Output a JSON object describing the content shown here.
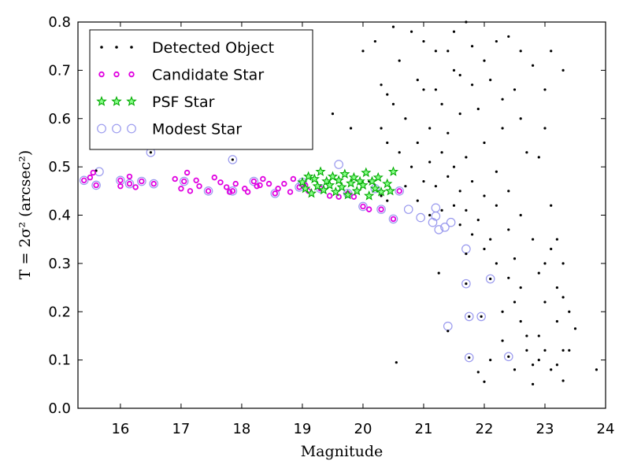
{
  "chart_data": {
    "type": "scatter",
    "xlabel": "Magnitude",
    "ylabel": "T = 2σ² (arcsec²)",
    "xlim": [
      15.3,
      24.0
    ],
    "ylim": [
      0.0,
      0.8
    ],
    "xticks": [
      "16",
      "17",
      "18",
      "19",
      "20",
      "21",
      "22",
      "23",
      "24"
    ],
    "yticks": [
      "0.0",
      "0.1",
      "0.2",
      "0.3",
      "0.4",
      "0.5",
      "0.6",
      "0.7",
      "0.8"
    ],
    "grid": false,
    "legend_position": "top-left",
    "series": [
      {
        "name": "Detected Object",
        "marker": "dot",
        "color": "#000000",
        "points": [
          [
            15.6,
            0.492
          ],
          [
            16.5,
            0.53
          ],
          [
            17.85,
            0.515
          ],
          [
            20.55,
            0.095
          ],
          [
            21.25,
            0.28
          ],
          [
            21.4,
            0.16
          ],
          [
            21.7,
            0.32
          ],
          [
            21.7,
            0.258
          ],
          [
            21.75,
            0.19
          ],
          [
            21.75,
            0.105
          ],
          [
            22.1,
            0.268
          ],
          [
            22.4,
            0.107
          ],
          [
            21.95,
            0.19
          ],
          [
            23.85,
            0.08
          ],
          [
            23.3,
            0.057
          ],
          [
            19.8,
            0.58
          ],
          [
            20.0,
            0.74
          ],
          [
            20.2,
            0.76
          ],
          [
            20.4,
            0.55
          ],
          [
            20.3,
            0.67
          ],
          [
            19.5,
            0.61
          ],
          [
            20.6,
            0.72
          ],
          [
            20.5,
            0.79
          ],
          [
            20.9,
            0.68
          ],
          [
            21.0,
            0.66
          ],
          [
            21.1,
            0.58
          ],
          [
            21.2,
            0.74
          ],
          [
            21.3,
            0.63
          ],
          [
            21.4,
            0.57
          ],
          [
            21.5,
            0.7
          ],
          [
            21.6,
            0.61
          ],
          [
            21.7,
            0.52
          ],
          [
            21.8,
            0.75
          ],
          [
            21.9,
            0.62
          ],
          [
            22.0,
            0.55
          ],
          [
            22.1,
            0.68
          ],
          [
            22.2,
            0.49
          ],
          [
            22.3,
            0.58
          ],
          [
            22.4,
            0.45
          ],
          [
            22.5,
            0.66
          ],
          [
            22.6,
            0.4
          ],
          [
            22.7,
            0.53
          ],
          [
            22.8,
            0.35
          ],
          [
            22.9,
            0.28
          ],
          [
            23.0,
            0.22
          ],
          [
            23.1,
            0.42
          ],
          [
            23.2,
            0.18
          ],
          [
            23.3,
            0.12
          ],
          [
            23.4,
            0.2
          ],
          [
            23.5,
            0.165
          ],
          [
            23.2,
            0.35
          ],
          [
            23.3,
            0.23
          ],
          [
            23.0,
            0.3
          ],
          [
            22.9,
            0.15
          ],
          [
            22.8,
            0.09
          ],
          [
            22.7,
            0.12
          ],
          [
            22.6,
            0.25
          ],
          [
            22.5,
            0.31
          ],
          [
            22.4,
            0.37
          ],
          [
            22.3,
            0.2
          ],
          [
            22.2,
            0.42
          ],
          [
            22.1,
            0.35
          ],
          [
            22.0,
            0.44
          ],
          [
            21.9,
            0.39
          ],
          [
            21.8,
            0.47
          ],
          [
            21.7,
            0.41
          ],
          [
            21.6,
            0.45
          ],
          [
            21.5,
            0.5
          ],
          [
            21.4,
            0.48
          ],
          [
            21.3,
            0.53
          ],
          [
            21.2,
            0.46
          ],
          [
            21.1,
            0.51
          ],
          [
            21.0,
            0.47
          ],
          [
            20.9,
            0.55
          ],
          [
            20.8,
            0.5
          ],
          [
            20.7,
            0.6
          ],
          [
            20.6,
            0.53
          ],
          [
            20.5,
            0.63
          ],
          [
            20.4,
            0.65
          ],
          [
            20.3,
            0.58
          ],
          [
            21.5,
            0.78
          ],
          [
            21.7,
            0.8
          ],
          [
            22.2,
            0.76
          ],
          [
            22.4,
            0.77
          ],
          [
            22.6,
            0.74
          ],
          [
            22.8,
            0.71
          ],
          [
            23.0,
            0.66
          ],
          [
            23.1,
            0.74
          ],
          [
            23.3,
            0.7
          ],
          [
            23.0,
            0.58
          ],
          [
            22.9,
            0.52
          ],
          [
            22.6,
            0.6
          ],
          [
            22.3,
            0.64
          ],
          [
            22.0,
            0.72
          ],
          [
            21.8,
            0.67
          ],
          [
            21.6,
            0.69
          ],
          [
            21.4,
            0.74
          ],
          [
            21.2,
            0.66
          ],
          [
            21.0,
            0.76
          ],
          [
            20.8,
            0.78
          ],
          [
            20.1,
            0.47
          ],
          [
            20.3,
            0.44
          ],
          [
            20.4,
            0.43
          ],
          [
            20.7,
            0.46
          ],
          [
            20.9,
            0.43
          ],
          [
            21.1,
            0.4
          ],
          [
            21.3,
            0.41
          ],
          [
            21.5,
            0.42
          ],
          [
            21.6,
            0.38
          ],
          [
            21.8,
            0.36
          ],
          [
            22.0,
            0.33
          ],
          [
            22.2,
            0.3
          ],
          [
            22.4,
            0.27
          ],
          [
            22.5,
            0.22
          ],
          [
            22.6,
            0.18
          ],
          [
            22.7,
            0.15
          ],
          [
            22.9,
            0.1
          ],
          [
            23.0,
            0.12
          ],
          [
            23.1,
            0.08
          ],
          [
            22.8,
            0.05
          ],
          [
            22.0,
            0.055
          ],
          [
            22.1,
            0.1
          ],
          [
            21.9,
            0.075
          ],
          [
            22.3,
            0.14
          ],
          [
            22.5,
            0.08
          ],
          [
            23.2,
            0.09
          ],
          [
            23.4,
            0.12
          ],
          [
            23.3,
            0.3
          ],
          [
            23.2,
            0.25
          ],
          [
            23.1,
            0.33
          ]
        ]
      },
      {
        "name": "Candidate Star",
        "marker": "small-circle",
        "color": "#e000e0",
        "points": [
          [
            15.4,
            0.472
          ],
          [
            15.5,
            0.478
          ],
          [
            15.6,
            0.462
          ],
          [
            15.55,
            0.488
          ],
          [
            16.0,
            0.472
          ],
          [
            16.0,
            0.46
          ],
          [
            16.15,
            0.48
          ],
          [
            16.15,
            0.465
          ],
          [
            16.25,
            0.458
          ],
          [
            16.35,
            0.47
          ],
          [
            16.55,
            0.465
          ],
          [
            16.9,
            0.475
          ],
          [
            17.0,
            0.455
          ],
          [
            17.05,
            0.47
          ],
          [
            17.1,
            0.488
          ],
          [
            17.15,
            0.45
          ],
          [
            17.25,
            0.472
          ],
          [
            17.3,
            0.46
          ],
          [
            17.45,
            0.45
          ],
          [
            17.55,
            0.478
          ],
          [
            17.65,
            0.468
          ],
          [
            17.75,
            0.458
          ],
          [
            17.85,
            0.45
          ],
          [
            17.9,
            0.465
          ],
          [
            18.05,
            0.455
          ],
          [
            18.1,
            0.448
          ],
          [
            18.2,
            0.47
          ],
          [
            18.3,
            0.462
          ],
          [
            18.35,
            0.475
          ],
          [
            18.45,
            0.465
          ],
          [
            18.55,
            0.445
          ],
          [
            18.6,
            0.455
          ],
          [
            18.7,
            0.465
          ],
          [
            18.8,
            0.448
          ],
          [
            18.85,
            0.475
          ],
          [
            18.95,
            0.458
          ],
          [
            19.05,
            0.462
          ],
          [
            19.1,
            0.45
          ],
          [
            19.3,
            0.455
          ],
          [
            19.45,
            0.44
          ],
          [
            19.6,
            0.438
          ],
          [
            19.75,
            0.445
          ],
          [
            19.85,
            0.438
          ],
          [
            20.0,
            0.418
          ],
          [
            20.1,
            0.412
          ],
          [
            20.3,
            0.412
          ],
          [
            20.5,
            0.392
          ],
          [
            20.6,
            0.45
          ],
          [
            17.8,
            0.448
          ],
          [
            18.25,
            0.46
          ]
        ]
      },
      {
        "name": "PSF Star",
        "marker": "star",
        "color": "#00aa00",
        "points": [
          [
            19.0,
            0.468
          ],
          [
            19.05,
            0.455
          ],
          [
            19.1,
            0.48
          ],
          [
            19.15,
            0.445
          ],
          [
            19.2,
            0.475
          ],
          [
            19.25,
            0.46
          ],
          [
            19.3,
            0.49
          ],
          [
            19.35,
            0.452
          ],
          [
            19.4,
            0.47
          ],
          [
            19.45,
            0.462
          ],
          [
            19.5,
            0.48
          ],
          [
            19.55,
            0.448
          ],
          [
            19.6,
            0.472
          ],
          [
            19.65,
            0.458
          ],
          [
            19.7,
            0.485
          ],
          [
            19.75,
            0.442
          ],
          [
            19.8,
            0.466
          ],
          [
            19.85,
            0.478
          ],
          [
            19.9,
            0.45
          ],
          [
            19.95,
            0.47
          ],
          [
            20.0,
            0.462
          ],
          [
            20.05,
            0.488
          ],
          [
            20.1,
            0.44
          ],
          [
            20.15,
            0.47
          ],
          [
            20.2,
            0.455
          ],
          [
            20.25,
            0.478
          ],
          [
            20.3,
            0.448
          ],
          [
            20.4,
            0.465
          ],
          [
            20.45,
            0.45
          ],
          [
            20.5,
            0.49
          ]
        ]
      },
      {
        "name": "Modest Star",
        "marker": "open-circle",
        "color": "#9999ee",
        "points": [
          [
            15.4,
            0.472
          ],
          [
            15.6,
            0.462
          ],
          [
            15.65,
            0.49
          ],
          [
            16.5,
            0.53
          ],
          [
            17.85,
            0.515
          ],
          [
            16.0,
            0.472
          ],
          [
            16.15,
            0.465
          ],
          [
            16.35,
            0.47
          ],
          [
            16.55,
            0.465
          ],
          [
            17.05,
            0.47
          ],
          [
            17.45,
            0.45
          ],
          [
            17.85,
            0.45
          ],
          [
            18.2,
            0.47
          ],
          [
            18.55,
            0.445
          ],
          [
            18.95,
            0.458
          ],
          [
            19.3,
            0.455
          ],
          [
            19.75,
            0.445
          ],
          [
            20.0,
            0.418
          ],
          [
            20.3,
            0.412
          ],
          [
            20.5,
            0.392
          ],
          [
            20.75,
            0.412
          ],
          [
            20.95,
            0.395
          ],
          [
            21.15,
            0.385
          ],
          [
            21.2,
            0.398
          ],
          [
            21.25,
            0.37
          ],
          [
            21.2,
            0.415
          ],
          [
            21.35,
            0.375
          ],
          [
            21.45,
            0.385
          ],
          [
            21.4,
            0.17
          ],
          [
            21.75,
            0.105
          ],
          [
            21.7,
            0.258
          ],
          [
            21.75,
            0.19
          ],
          [
            21.95,
            0.19
          ],
          [
            22.1,
            0.268
          ],
          [
            22.4,
            0.107
          ],
          [
            21.7,
            0.33
          ],
          [
            19.6,
            0.505
          ],
          [
            20.6,
            0.45
          ],
          [
            19.0,
            0.468
          ],
          [
            20.2,
            0.455
          ]
        ]
      }
    ]
  }
}
